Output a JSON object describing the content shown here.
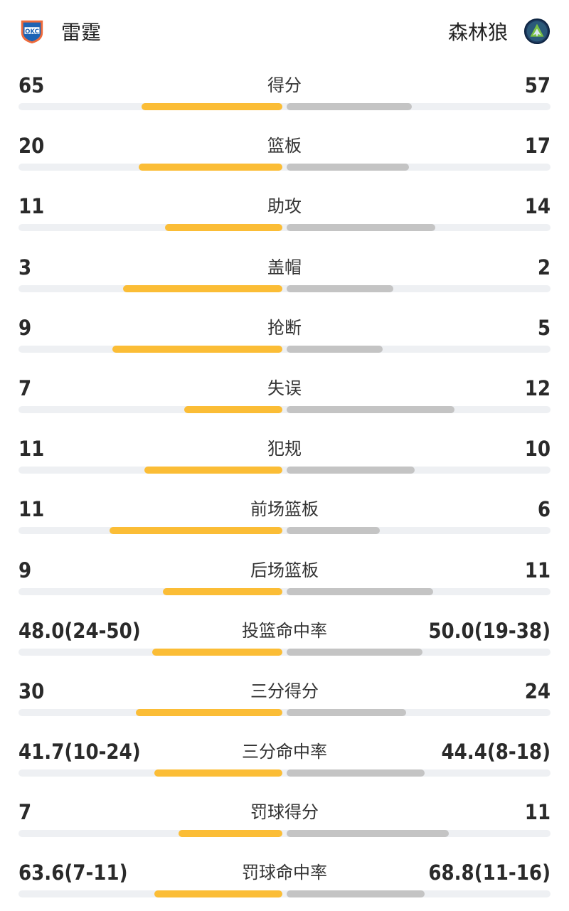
{
  "teams": {
    "home": {
      "name": "雷霆",
      "logo_icon": "okc-thunder-logo-icon",
      "color": "#fbbd36"
    },
    "away": {
      "name": "森林狼",
      "logo_icon": "timberwolves-logo-icon",
      "color": "#c4c4c4"
    }
  },
  "stats": [
    {
      "label": "得分",
      "home": "65",
      "away": "57",
      "home_share": 0.53,
      "away_share": 0.47
    },
    {
      "label": "篮板",
      "home": "20",
      "away": "17",
      "home_share": 0.54,
      "away_share": 0.46
    },
    {
      "label": "助攻",
      "home": "11",
      "away": "14",
      "home_share": 0.44,
      "away_share": 0.56
    },
    {
      "label": "盖帽",
      "home": "3",
      "away": "2",
      "home_share": 0.6,
      "away_share": 0.4
    },
    {
      "label": "抢断",
      "home": "9",
      "away": "5",
      "home_share": 0.64,
      "away_share": 0.36
    },
    {
      "label": "失误",
      "home": "7",
      "away": "12",
      "home_share": 0.37,
      "away_share": 0.63
    },
    {
      "label": "犯规",
      "home": "11",
      "away": "10",
      "home_share": 0.52,
      "away_share": 0.48
    },
    {
      "label": "前场篮板",
      "home": "11",
      "away": "6",
      "home_share": 0.65,
      "away_share": 0.35
    },
    {
      "label": "后场篮板",
      "home": "9",
      "away": "11",
      "home_share": 0.45,
      "away_share": 0.55
    },
    {
      "label": "投篮命中率",
      "home": "48.0(24-50)",
      "away": "50.0(19-38)",
      "home_share": 0.49,
      "away_share": 0.51
    },
    {
      "label": "三分得分",
      "home": "30",
      "away": "24",
      "home_share": 0.55,
      "away_share": 0.45
    },
    {
      "label": "三分命中率",
      "home": "41.7(10-24)",
      "away": "44.4(8-18)",
      "home_share": 0.48,
      "away_share": 0.52
    },
    {
      "label": "罚球得分",
      "home": "7",
      "away": "11",
      "home_share": 0.39,
      "away_share": 0.61
    },
    {
      "label": "罚球命中率",
      "home": "63.6(7-11)",
      "away": "68.8(11-16)",
      "home_share": 0.48,
      "away_share": 0.52
    }
  ]
}
